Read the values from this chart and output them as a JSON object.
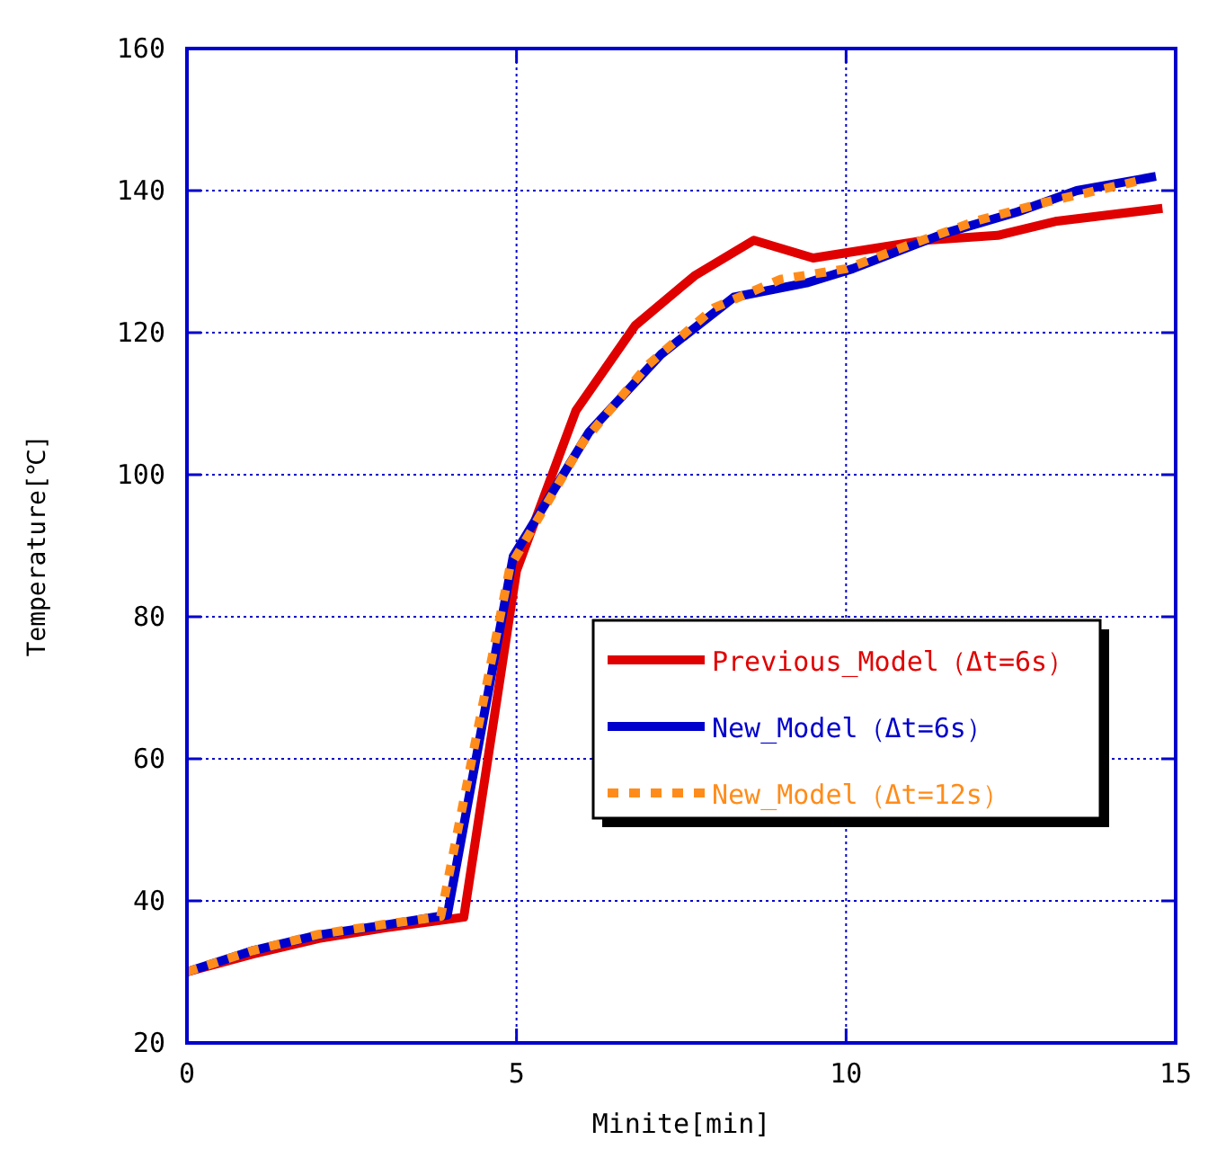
{
  "chart_data": {
    "type": "line",
    "xlabel": "Minite[min]",
    "ylabel": "Temperature[℃]",
    "xlim": [
      0,
      15
    ],
    "xticks": [
      0,
      5,
      10,
      15
    ],
    "ylim": [
      20,
      160
    ],
    "yticks": [
      20,
      40,
      60,
      80,
      100,
      120,
      140,
      160
    ],
    "grid": true,
    "legend": "right",
    "marker": "none",
    "series": [
      {
        "name": "Previous_Model（Δt=6s）",
        "color": "#e00000",
        "line_style": "solid",
        "x": [
          0,
          1,
          2,
          3,
          4.2,
          5.0,
          5.9,
          6.8,
          7.7,
          8.6,
          9.5,
          11.2,
          12.3,
          13.2,
          14.8
        ],
        "values": [
          30,
          32.5,
          34.7,
          36.2,
          37.7,
          86.5,
          109,
          121,
          128,
          133,
          130.5,
          133,
          133.7,
          135.7,
          137.5
        ]
      },
      {
        "name": "New_Model（Δt=6s）",
        "color": "#0000cc",
        "line_style": "solid",
        "x": [
          0,
          1,
          2,
          3,
          3.95,
          4.95,
          6.1,
          7.2,
          8.3,
          9.4,
          10.1,
          11.5,
          12.6,
          13.5,
          14.7
        ],
        "values": [
          30,
          33,
          35.2,
          36.6,
          38,
          88.5,
          106,
          117,
          125,
          127,
          129,
          134,
          137,
          140,
          142
        ]
      },
      {
        "name": "New_Model（Δt=12s）",
        "color": "#ff8c1a",
        "line_style": "dotted",
        "x": [
          0,
          1,
          2,
          3,
          3.85,
          4.9,
          6,
          7,
          8,
          9,
          10,
          11,
          12,
          13,
          14.5
        ],
        "values": [
          30,
          33,
          35.3,
          36.7,
          37.8,
          87,
          104.5,
          115.5,
          123.5,
          127.5,
          129,
          132.5,
          135.8,
          138.3,
          141.5
        ]
      }
    ]
  }
}
